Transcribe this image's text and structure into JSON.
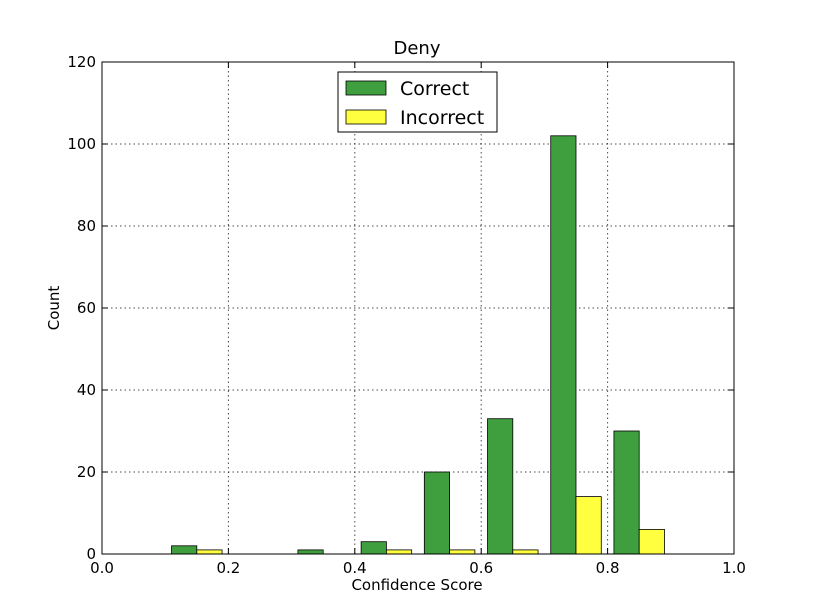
{
  "chart_data": {
    "type": "bar",
    "title": "Deny",
    "xlabel": "Confidence Score",
    "ylabel": "Count",
    "xlim": [
      0.0,
      1.0
    ],
    "ylim": [
      0,
      120
    ],
    "xticks": [
      "0.0",
      "0.2",
      "0.4",
      "0.6",
      "0.8",
      "1.0"
    ],
    "yticks": [
      "0",
      "20",
      "40",
      "60",
      "80",
      "100",
      "120"
    ],
    "grid": true,
    "legend_position": "top-center",
    "bin_edges": [
      0.0,
      0.1,
      0.2,
      0.3,
      0.4,
      0.5,
      0.6,
      0.7,
      0.8,
      0.9,
      1.0
    ],
    "series": [
      {
        "name": "Correct",
        "color": "#3f9f3f",
        "values": [
          0,
          2,
          0,
          1,
          3,
          20,
          33,
          102,
          30,
          0
        ]
      },
      {
        "name": "Incorrect",
        "color": "#ffff40",
        "values": [
          0,
          1,
          0,
          0,
          1,
          1,
          1,
          14,
          6,
          0
        ]
      }
    ]
  }
}
